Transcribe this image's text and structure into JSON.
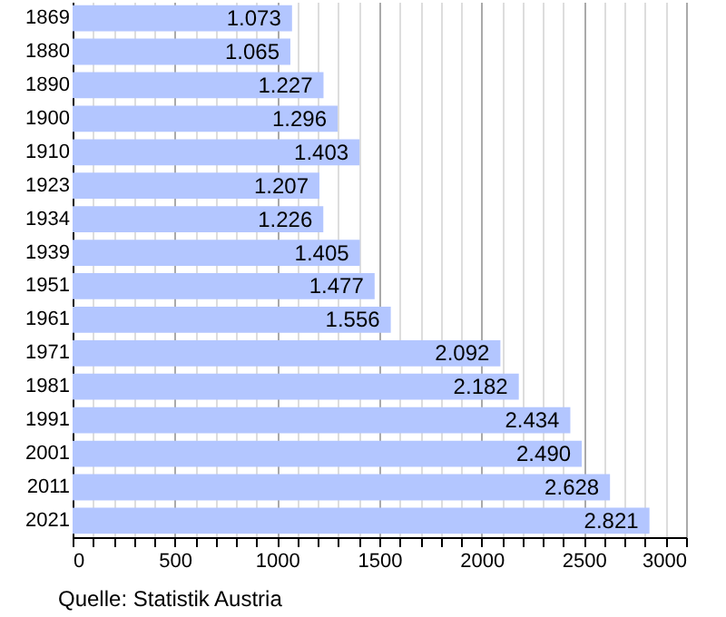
{
  "chart_data": {
    "type": "bar",
    "orientation": "horizontal",
    "categories": [
      "1869",
      "1880",
      "1890",
      "1900",
      "1910",
      "1923",
      "1934",
      "1939",
      "1951",
      "1961",
      "1971",
      "1981",
      "1991",
      "2001",
      "2011",
      "2021"
    ],
    "values": [
      1073,
      1065,
      1227,
      1296,
      1403,
      1207,
      1226,
      1405,
      1477,
      1556,
      2092,
      2182,
      2434,
      2490,
      2628,
      2821
    ],
    "value_labels": [
      "1.073",
      "1.065",
      "1.227",
      "1.296",
      "1.403",
      "1.207",
      "1.226",
      "1.405",
      "1.477",
      "1.556",
      "2.092",
      "2.182",
      "2.434",
      "2.490",
      "2.628",
      "2.821"
    ],
    "color": "#b3c6ff",
    "xlim": [
      0,
      3000
    ],
    "xticks": [
      0,
      {
        "value": 100,
        "label": null
      },
      {
        "value": 200,
        "label": null
      },
      {
        "value": 300,
        "label": null
      },
      {
        "value": 400,
        "label": null
      },
      500,
      {
        "value": 600,
        "label": null
      },
      {
        "value": 700,
        "label": null
      },
      {
        "value": 800,
        "label": null
      },
      {
        "value": 900,
        "label": null
      },
      1000,
      {
        "value": 1100,
        "label": null
      },
      {
        "value": 1200,
        "label": null
      },
      {
        "value": 1300,
        "label": null
      },
      {
        "value": 1400,
        "label": null
      },
      1500,
      {
        "value": 1600,
        "label": null
      },
      {
        "value": 1700,
        "label": null
      },
      {
        "value": 1800,
        "label": null
      },
      {
        "value": 1900,
        "label": null
      },
      2000,
      {
        "value": 2100,
        "label": null
      },
      {
        "value": 2200,
        "label": null
      },
      {
        "value": 2300,
        "label": null
      },
      {
        "value": 2400,
        "label": null
      },
      2500,
      {
        "value": 2600,
        "label": null
      },
      {
        "value": 2700,
        "label": null
      },
      {
        "value": 2800,
        "label": null
      },
      {
        "value": 2900,
        "label": null
      },
      3000
    ],
    "grid": "x",
    "annotations": [
      "Quelle: Statistik Austria"
    ]
  }
}
